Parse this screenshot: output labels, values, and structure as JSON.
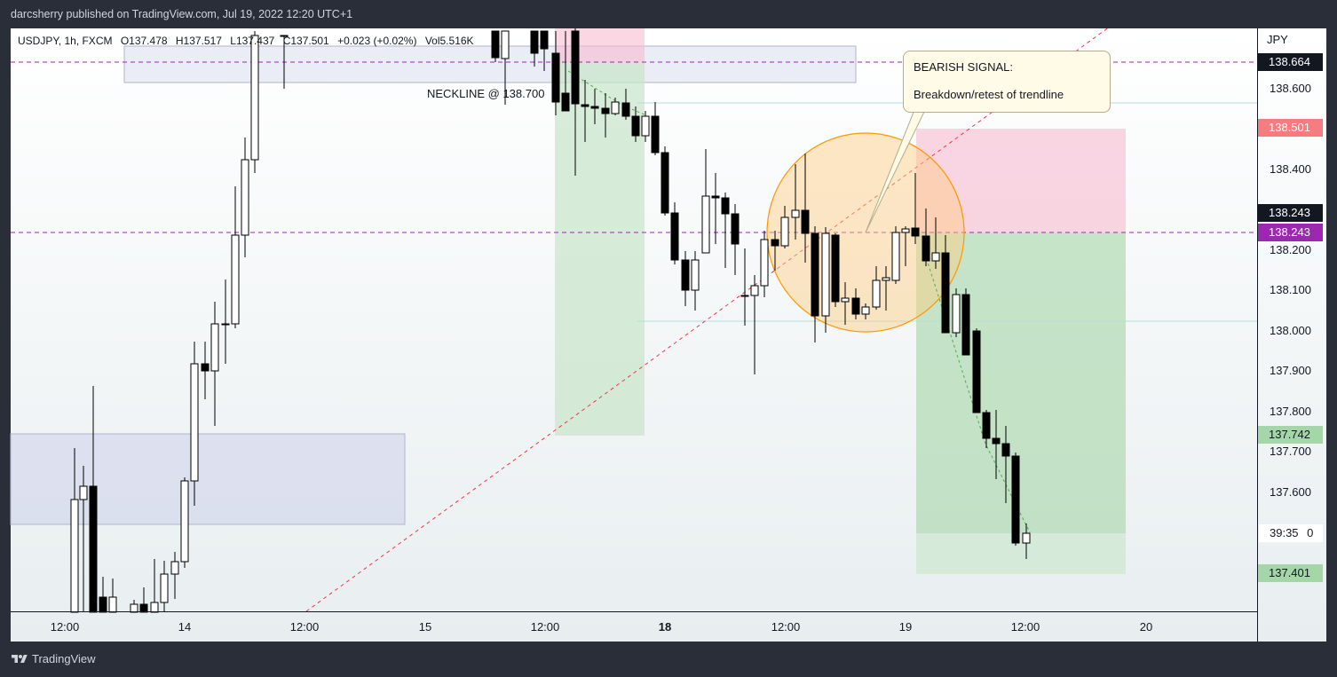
{
  "header": {
    "published_text": "darcsherry published on TradingView.com, Jul 19, 2022 12:20 UTC+1"
  },
  "symbol_info": {
    "symbol": "USDJPY, 1h, FXCM",
    "open": "O137.478",
    "high": "H137.517",
    "low": "L137.437",
    "close": "C137.501",
    "change": "+0.023 (+0.02%)",
    "volume": "Vol5.516K"
  },
  "annotations": {
    "neckline": "NECKLINE @ 138.700",
    "callout_title": "BEARISH SIGNAL:",
    "callout_body": "Breakdown/retest of trendline"
  },
  "price_axis": {
    "unit": "JPY",
    "ticks": [
      "138.600",
      "138.400",
      "138.200",
      "138.100",
      "138.000",
      "137.900",
      "137.800",
      "137.700",
      "137.600"
    ],
    "labels": [
      {
        "text": "138.664",
        "bg": "#131722",
        "fg": "#ffffff"
      },
      {
        "text": "138.501",
        "bg": "#f77c80",
        "fg": "#ffffff"
      },
      {
        "text": "138.243",
        "bg": "#131722",
        "fg": "#ffffff"
      },
      {
        "text": "138.243",
        "bg": "#9c27b0",
        "fg": "#ffffff"
      },
      {
        "text": "137.742",
        "bg": "#a5d6a7",
        "fg": "#131722"
      },
      {
        "text": "137.401",
        "bg": "#a5d6a7",
        "fg": "#131722"
      }
    ],
    "countdown": "39:35",
    "countdown_suffix": "0"
  },
  "time_axis": {
    "ticks": [
      "12:00",
      "14",
      "12:00",
      "15",
      "12:00",
      "18",
      "12:00",
      "19",
      "12:00",
      "20"
    ]
  },
  "footer": {
    "brand": "TradingView"
  },
  "colors": {
    "up_body": "#ffffff",
    "down_body": "#000000",
    "dashed_level": "#9c27b0",
    "trendline": "#f23645"
  }
}
